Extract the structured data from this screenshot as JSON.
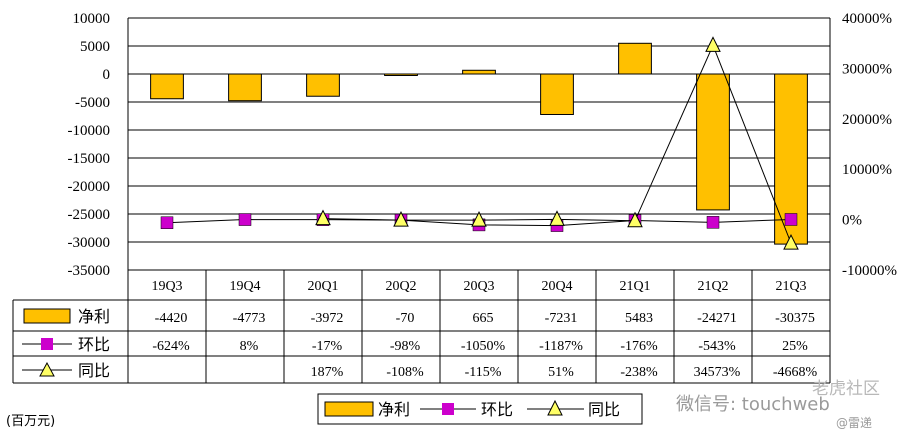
{
  "chart_data": {
    "type": "bar",
    "categories": [
      "19Q3",
      "19Q4",
      "20Q1",
      "20Q2",
      "20Q3",
      "20Q4",
      "21Q1",
      "21Q2",
      "21Q3"
    ],
    "series": [
      {
        "name": "净利",
        "type": "bar",
        "color": "#ffc000",
        "values": [
          -4420,
          -4773,
          -3972,
          -70,
          665,
          -7231,
          5483,
          -24271,
          -30375
        ],
        "labels": [
          "-4420",
          "-4773",
          "-3972",
          "-70",
          "665",
          "-7231",
          "5483",
          "-24271",
          "-30375"
        ]
      },
      {
        "name": "环比",
        "type": "line",
        "color": "#cc00cc",
        "marker": "square",
        "axis": "right",
        "values": [
          -624,
          8,
          -17,
          -98,
          -1050,
          -1187,
          -176,
          -543,
          25
        ],
        "labels": [
          "-624%",
          "8%",
          "-17%",
          "-98%",
          "-1050%",
          "-1187%",
          "-176%",
          "-543%",
          "25%"
        ]
      },
      {
        "name": "同比",
        "type": "line",
        "color": "#ffff66",
        "marker": "triangle",
        "axis": "right",
        "values": [
          null,
          null,
          187,
          -108,
          -115,
          51,
          -238,
          34573,
          -4668
        ],
        "labels": [
          "",
          "",
          "187%",
          "-108%",
          "-115%",
          "51%",
          "-238%",
          "34573%",
          "-4668%"
        ]
      }
    ],
    "ylim": [
      -35000,
      10000
    ],
    "yticks": [
      "10000",
      "5000",
      "0",
      "-5000",
      "-10000",
      "-15000",
      "-20000",
      "-25000",
      "-30000",
      "-35000"
    ],
    "y2lim": [
      -10000,
      40000
    ],
    "y2ticks": [
      "40000%",
      "30000%",
      "20000%",
      "10000%",
      "0%",
      "-10000%"
    ],
    "grid": true,
    "legend": "bottom"
  },
  "unit_label": "(百万元)",
  "watermark": {
    "wechat": "微信号: touchweb",
    "site": "老虎社区",
    "author": "@雷递"
  }
}
